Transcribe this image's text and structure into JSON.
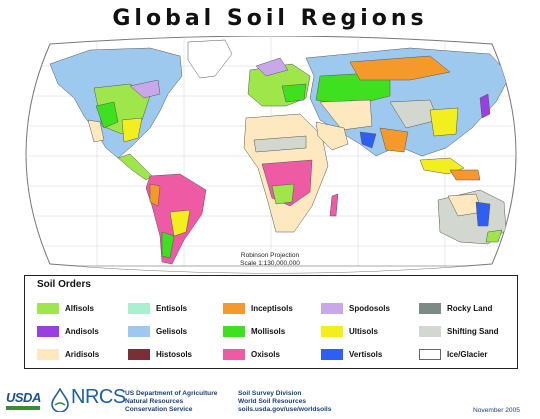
{
  "title": "Global Soil Regions",
  "projection": {
    "line1": "Robinson Projection",
    "line2": "Scale 1:130,000,000"
  },
  "legend": {
    "title": "Soil Orders",
    "items": [
      {
        "label": "Alfisols",
        "color": "#9ee64a"
      },
      {
        "label": "Andisols",
        "color": "#9a3fe0"
      },
      {
        "label": "Aridisols",
        "color": "#fde8bf"
      },
      {
        "label": "Entisols",
        "color": "#a8f0cf"
      },
      {
        "label": "Gelisols",
        "color": "#9ec9ee"
      },
      {
        "label": "Histosols",
        "color": "#7a2f36"
      },
      {
        "label": "Inceptisols",
        "color": "#f59a2a"
      },
      {
        "label": "Mollisols",
        "color": "#3fe020"
      },
      {
        "label": "Oxisols",
        "color": "#ee5aa3"
      },
      {
        "label": "Spodosols",
        "color": "#c9a8ea"
      },
      {
        "label": "Ultisols",
        "color": "#f3ef1f"
      },
      {
        "label": "Vertisols",
        "color": "#2f5ff2"
      },
      {
        "label": "Rocky Land",
        "color": "#7e8a88"
      },
      {
        "label": "Shifting Sand",
        "color": "#d2d8d0"
      },
      {
        "label": "Ice/Glacier",
        "color": "#ffffff"
      }
    ]
  },
  "footer": {
    "usda": "USDA",
    "nrcs": "NRCS",
    "dept_line1": "US Department of Agriculture",
    "dept_line2": "Natural Resources",
    "dept_line3": "Conservation Service",
    "div_line1": "Soil Survey Division",
    "div_line2": "World Soil Resources",
    "div_line3": "soils.usda.gov/use/worldsoils",
    "date": "November 2005"
  }
}
